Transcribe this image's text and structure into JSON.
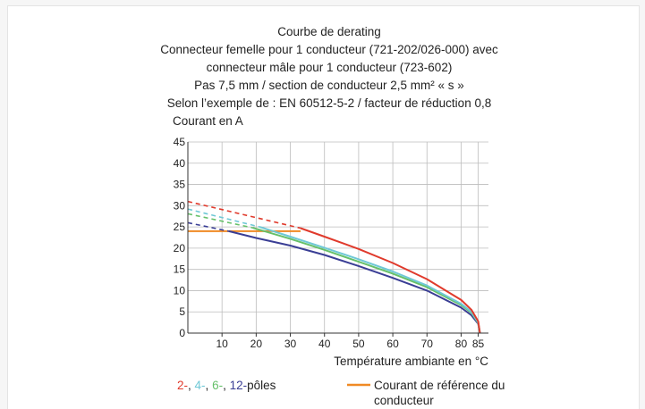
{
  "chart_data": {
    "type": "line",
    "title": "Courbe de derating",
    "subtitle_lines": [
      "Connecteur femelle pour 1 conducteur (721-202/026-000) avec",
      "connecteur mâle pour 1 conducteur (723-602)",
      "Pas 7,5 mm / section de conducteur 2,5 mm² « s »",
      "Selon l’exemple de : EN 60512-5-2 / facteur de réduction 0,8"
    ],
    "ylabel": "Courant en A",
    "xlabel": "Température ambiante en °C",
    "xlim": [
      0,
      88
    ],
    "ylim": [
      0,
      45
    ],
    "x_ticks": [
      10,
      20,
      30,
      40,
      50,
      60,
      70,
      80,
      85
    ],
    "y_ticks": [
      0,
      5,
      10,
      15,
      20,
      25,
      30,
      35,
      40,
      45
    ],
    "grid": true,
    "series": [
      {
        "name": "2-",
        "color": "#e03a2c",
        "dashed_points": [
          [
            0,
            31
          ],
          [
            33,
            24.7
          ]
        ],
        "solid_points": [
          [
            33,
            24.7
          ],
          [
            40,
            22.7
          ],
          [
            50,
            19.8
          ],
          [
            60,
            16.5
          ],
          [
            70,
            12.7
          ],
          [
            80,
            7.8
          ],
          [
            83,
            5.5
          ],
          [
            85,
            2.8
          ],
          [
            85.5,
            0
          ]
        ]
      },
      {
        "name": "4-",
        "color": "#6fc8d6",
        "dashed_points": [
          [
            0,
            29.2
          ],
          [
            21,
            25
          ]
        ],
        "solid_points": [
          [
            21,
            25
          ],
          [
            30,
            22.7
          ],
          [
            40,
            20.1
          ],
          [
            50,
            17.4
          ],
          [
            60,
            14.5
          ],
          [
            70,
            11.2
          ],
          [
            80,
            6.9
          ],
          [
            83,
            5
          ],
          [
            85,
            2.5
          ],
          [
            85.5,
            0
          ]
        ]
      },
      {
        "name": "6-",
        "color": "#66c06a",
        "dashed_points": [
          [
            0,
            28.1
          ],
          [
            19,
            24.8
          ]
        ],
        "solid_points": [
          [
            19,
            24.8
          ],
          [
            30,
            22.2
          ],
          [
            40,
            19.6
          ],
          [
            50,
            16.8
          ],
          [
            60,
            14
          ],
          [
            70,
            10.8
          ],
          [
            80,
            6.6
          ],
          [
            83,
            4.8
          ],
          [
            85,
            2.4
          ],
          [
            85.5,
            0
          ]
        ]
      },
      {
        "name": "12-",
        "color": "#3a3e95",
        "dashed_points": [
          [
            0,
            26
          ],
          [
            12,
            24
          ]
        ],
        "solid_points": [
          [
            12,
            24
          ],
          [
            20,
            22.4
          ],
          [
            30,
            20.6
          ],
          [
            40,
            18.4
          ],
          [
            50,
            15.8
          ],
          [
            60,
            13
          ],
          [
            70,
            10
          ],
          [
            80,
            6
          ],
          [
            83,
            4.2
          ],
          [
            85,
            2.2
          ],
          [
            85.5,
            0
          ]
        ]
      },
      {
        "name": "Courant de référence du conducteur",
        "color": "#f08a24",
        "solid_points": [
          [
            0,
            24
          ],
          [
            33,
            24
          ]
        ]
      }
    ],
    "legend": {
      "poles_items": [
        {
          "text": "2-",
          "color": "#e03a2c"
        },
        {
          "text": ", ",
          "color": "#222222"
        },
        {
          "text": "4-",
          "color": "#6fc8d6"
        },
        {
          "text": ", ",
          "color": "#222222"
        },
        {
          "text": "6-",
          "color": "#66c06a"
        },
        {
          "text": ", ",
          "color": "#222222"
        },
        {
          "text": "12-",
          "color": "#3a3e95"
        },
        {
          "text": "pôles",
          "color": "#222222"
        }
      ],
      "reference_line_1": "Courant de référence du",
      "reference_line_2": "conducteur",
      "reference_color": "#f08a24"
    }
  }
}
